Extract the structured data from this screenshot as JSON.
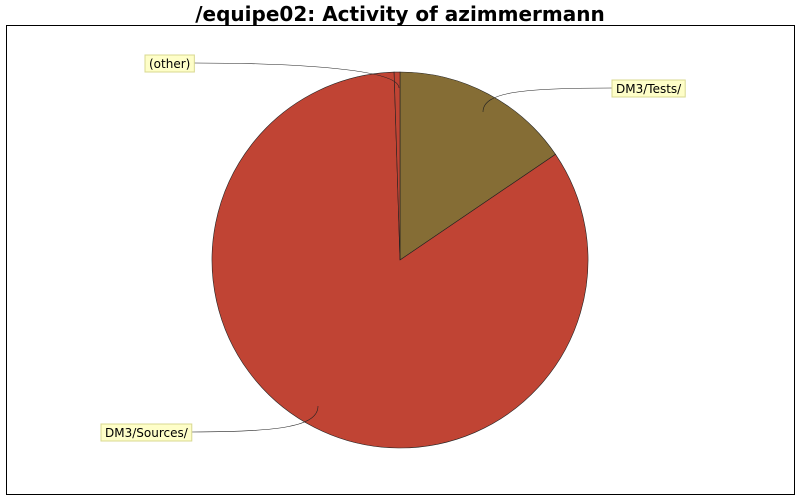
{
  "chart_data": {
    "type": "pie",
    "title": "/equipe02: Activity of azimmermann",
    "slices": [
      {
        "label": "DM3/Tests/",
        "value": 15.5,
        "color": "#856d35"
      },
      {
        "label": "DM3/Sources/",
        "value": 84.0,
        "color": "#c04434"
      },
      {
        "label": "(other)",
        "value": 0.5,
        "color": "#c04434"
      }
    ],
    "label_box_color": "#fefec8"
  }
}
